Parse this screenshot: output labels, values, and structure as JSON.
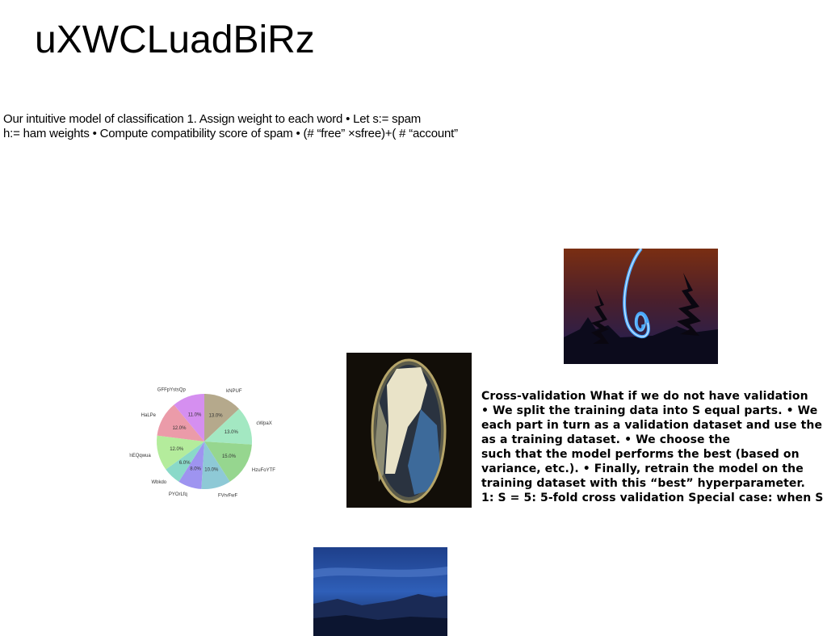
{
  "slide": {
    "title": "uXWCLuadBiRz",
    "intro_lines": [
      "Our intuitive model of classification 1. Assign weight to each word • Let s:= spam",
      "h:= ham weights • Compute compatibility score of spam • (# “free” ×sfree)+( # “account”"
    ],
    "cv_lines": [
      "Cross-validation What if we do not have validation",
      "• We split the training data into S equal parts. • We",
      "each part in turn as a validation dataset and use the",
      "as a training dataset. • We choose the",
      "such that the model performs the best (based on",
      "variance, etc.). • Finally, retrain the model on the",
      "training dataset with this “best” hyperparameter.",
      "1: S = 5: 5-fold cross validation Special case: when S"
    ]
  },
  "images": {
    "light_trail": "photo of blue light-painting spiral at night with trees",
    "fisheye_building": "fisheye photo looking up at tall buildings",
    "blue_landscape": "dusky blue mountain landscape photo"
  },
  "chart_data": {
    "type": "pie",
    "title": "",
    "labels": [
      "kNPUF",
      "cWpaX",
      "HzuFoYTF",
      "FVrvFwF",
      "PYOrLfq",
      "Wbkdo",
      "fnEQqwua",
      "HaLPe",
      "GFFpYstsQp"
    ],
    "values": [
      13.0,
      13.0,
      15.0,
      10.0,
      8.0,
      6.0,
      12.0,
      12.0,
      11.0
    ],
    "value_labels": [
      "13.0%",
      "13.0%",
      "15.0%",
      "10.0%",
      "8.0%",
      "6.0%",
      "12.0%",
      "12.0%",
      "11.0%"
    ],
    "colors": [
      "#b5a98c",
      "#a3e8c2",
      "#96d68f",
      "#8ec9d6",
      "#9e94f0",
      "#8ad9c9",
      "#b4ec9c",
      "#eb9ba9",
      "#d58ff0"
    ],
    "start_angle_deg": 90,
    "direction": "clockwise"
  }
}
